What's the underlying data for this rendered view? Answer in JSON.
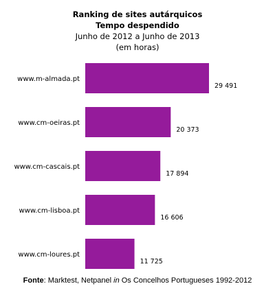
{
  "chart_data": {
    "type": "bar",
    "orientation": "horizontal",
    "title": "Ranking de sites autárquicos",
    "subtitle": "Tempo despendido",
    "period": "Junho de 2012 a Junho de 2013",
    "units": "(em horas)",
    "categories": [
      "www.m-almada.pt",
      "www.cm-oeiras.pt",
      "www.cm-cascais.pt",
      "www.cm-lisboa.pt",
      "www.cm-loures.pt"
    ],
    "values": [
      29491,
      20373,
      17894,
      16606,
      11725
    ],
    "value_labels": [
      "29 491",
      "20 373",
      "17 894",
      "16 606",
      "11 725"
    ],
    "bar_color": "#951b9b",
    "grid": false,
    "legend": false
  },
  "footer": {
    "source_label": "Fonte",
    "source_text_1": ": Marktest, Netpanel ",
    "source_italic": "in",
    "source_text_2": " Os Concelhos Portugueses 1992-2012"
  }
}
